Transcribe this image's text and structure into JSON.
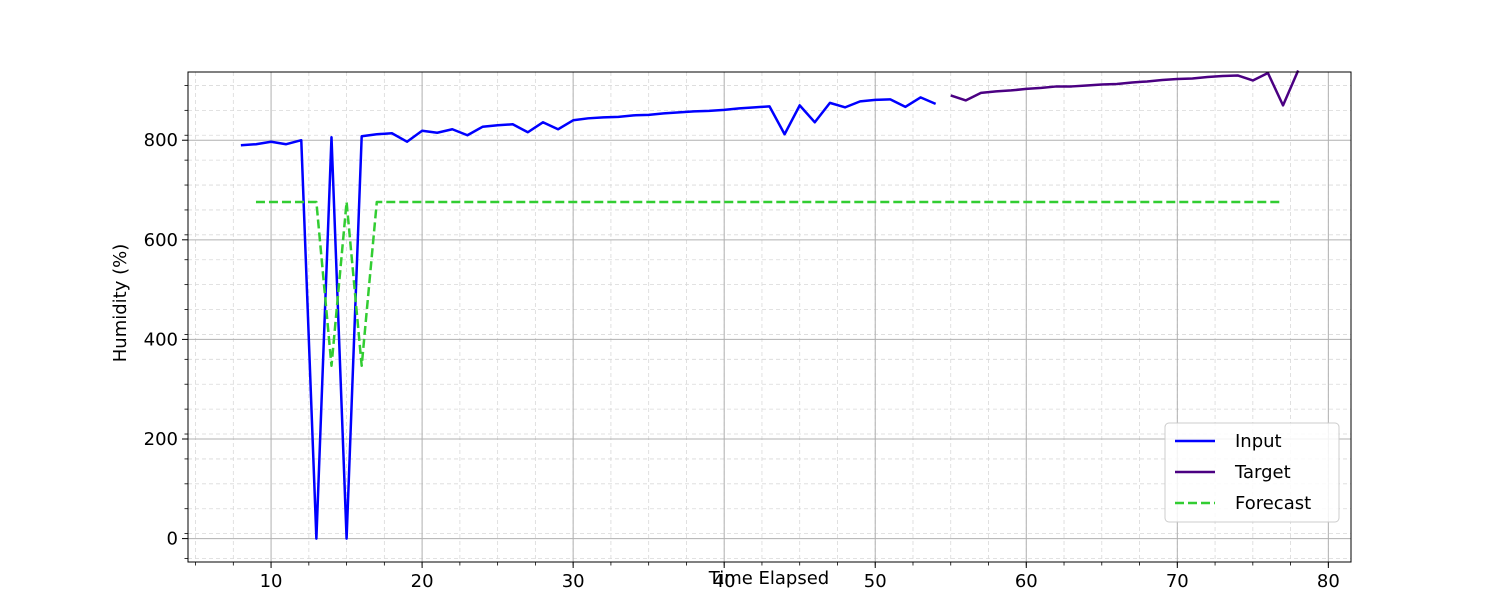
{
  "chart_data": {
    "type": "line",
    "title": "",
    "xlabel": "Time Elapsed",
    "ylabel": "Humidity (%)",
    "xlim": [
      4.5,
      81.5
    ],
    "ylim": [
      -47,
      937
    ],
    "x_ticks": [
      10,
      20,
      30,
      40,
      50,
      60,
      70,
      80
    ],
    "y_ticks": [
      0,
      200,
      400,
      600,
      800
    ],
    "grid": true,
    "minor_grid": true,
    "legend_position": "lower-right",
    "series": [
      {
        "name": "Input",
        "color": "#0000ff",
        "style": "solid",
        "x": [
          8,
          9,
          10,
          11,
          12,
          13,
          14,
          15,
          16,
          17,
          18,
          19,
          20,
          21,
          22,
          23,
          24,
          25,
          26,
          27,
          28,
          29,
          30,
          31,
          32,
          33,
          34,
          35,
          36,
          37,
          38,
          39,
          40,
          41,
          42,
          43,
          44,
          45,
          46,
          47,
          48,
          49,
          50,
          51,
          52,
          53,
          54
        ],
        "y": [
          790,
          792,
          797,
          792,
          800,
          0,
          806,
          0,
          808,
          812,
          814,
          797,
          819,
          815,
          822,
          810,
          827,
          830,
          832,
          816,
          836,
          822,
          840,
          844,
          846,
          847,
          850,
          851,
          854,
          856,
          858,
          859,
          861,
          864,
          866,
          868,
          812,
          870,
          836,
          875,
          866,
          878,
          881,
          882,
          867,
          886,
          873
        ]
      },
      {
        "name": "Target",
        "color": "#4b0082",
        "style": "solid",
        "x": [
          55,
          56,
          57,
          58,
          59,
          60,
          61,
          62,
          63,
          64,
          65,
          66,
          67,
          68,
          69,
          70,
          71,
          72,
          73,
          74,
          75,
          76,
          77,
          78
        ],
        "y": [
          890,
          880,
          895,
          898,
          900,
          903,
          905,
          908,
          908,
          910,
          912,
          913,
          916,
          918,
          921,
          923,
          924,
          927,
          929,
          930,
          920,
          935,
          870,
          940
        ]
      },
      {
        "name": "Forecast",
        "color": "#32cd32",
        "style": "dashed",
        "x": [
          9,
          10,
          11,
          12,
          13,
          14,
          15,
          16,
          17,
          18,
          20,
          25,
          30,
          40,
          50,
          60,
          70,
          77
        ],
        "y": [
          676,
          676,
          676,
          676,
          676,
          347,
          676,
          347,
          676,
          676,
          676,
          676,
          676,
          676,
          676,
          676,
          676,
          676
        ]
      }
    ]
  }
}
